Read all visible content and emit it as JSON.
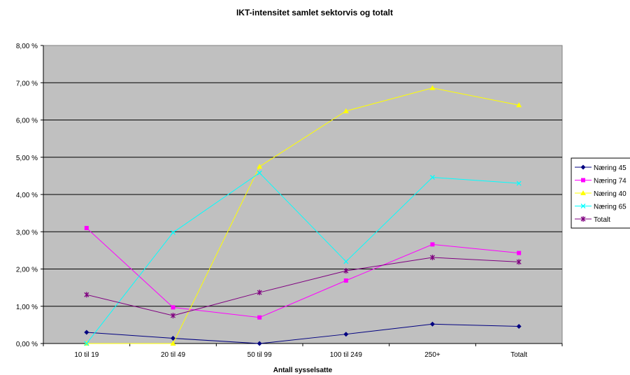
{
  "chart_data": {
    "type": "line",
    "title": "IKT-intensitet samlet sektorvis og totalt",
    "xlabel": "Antall sysselsatte",
    "ylabel": "",
    "categories": [
      "10 til 19",
      "20 til 49",
      "50 til 99",
      "100 til 249",
      "250+",
      "Totalt"
    ],
    "ylim": [
      0,
      8
    ],
    "y_ticks": [
      "0,00 %",
      "1,00 %",
      "2,00 %",
      "3,00 %",
      "4,00 %",
      "5,00 %",
      "6,00 %",
      "7,00 %",
      "8,00 %"
    ],
    "grid": true,
    "legend_position": "right",
    "plot_background": "#c0c0c0",
    "series": [
      {
        "name": "Næring 45",
        "color": "#000080",
        "marker": "diamond",
        "values": [
          0.3,
          0.14,
          0.0,
          0.25,
          0.52,
          0.46
        ]
      },
      {
        "name": "Næring 74",
        "color": "#ff00ff",
        "marker": "square",
        "values": [
          3.1,
          0.97,
          0.7,
          1.69,
          2.66,
          2.43
        ]
      },
      {
        "name": "Næring 40",
        "color": "#ffff00",
        "marker": "triangle",
        "values": [
          0.0,
          0.0,
          4.75,
          6.24,
          6.86,
          6.4
        ]
      },
      {
        "name": "Næring 65",
        "color": "#00ffff",
        "marker": "x",
        "values": [
          0.0,
          2.98,
          4.58,
          2.2,
          4.46,
          4.3
        ]
      },
      {
        "name": "Totalt",
        "color": "#800080",
        "marker": "star",
        "values": [
          1.31,
          0.75,
          1.37,
          1.95,
          2.31,
          2.19
        ]
      }
    ]
  }
}
